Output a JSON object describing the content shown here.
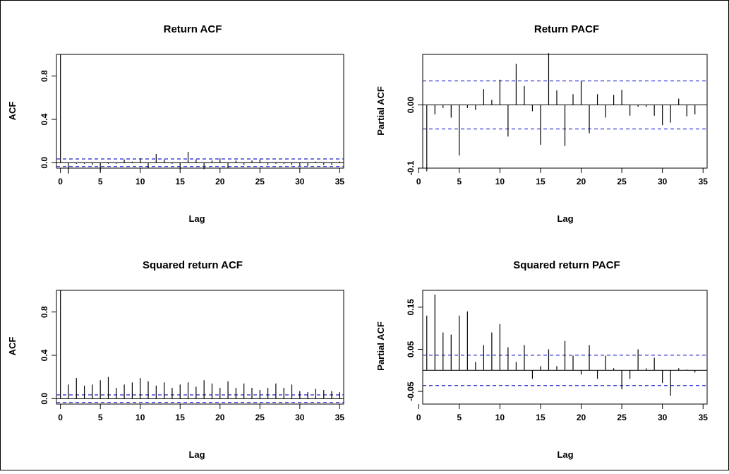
{
  "chart_data": [
    {
      "type": "bar",
      "title": "Return ACF",
      "xlabel": "Lag",
      "ylabel": "ACF",
      "xlim": [
        -0.5,
        35.5
      ],
      "ylim": [
        -0.05,
        1.0
      ],
      "xticks": [
        0,
        5,
        10,
        15,
        20,
        25,
        30,
        35
      ],
      "yticks": [
        0.0,
        0.4,
        0.8
      ],
      "zero_line": true,
      "confidence_band": 0.035,
      "series": [
        {
          "x": [
            0,
            1,
            2,
            3,
            4,
            5,
            6,
            7,
            8,
            9,
            10,
            11,
            12,
            13,
            14,
            15,
            16,
            17,
            18,
            19,
            20,
            21,
            22,
            23,
            24,
            25,
            26,
            27,
            28,
            29,
            30,
            31,
            32,
            33,
            34,
            35
          ],
          "values": [
            1.0,
            -0.1,
            -0.01,
            -0.01,
            -0.02,
            -0.08,
            -0.01,
            -0.01,
            0.03,
            0.01,
            0.04,
            -0.05,
            0.08,
            0.03,
            -0.01,
            -0.06,
            0.1,
            0.03,
            -0.06,
            0.02,
            0.04,
            -0.05,
            0.02,
            -0.02,
            0.02,
            0.03,
            -0.02,
            -0.01,
            -0.01,
            -0.02,
            -0.03,
            -0.03,
            0.01,
            -0.02,
            -0.02,
            0.01
          ]
        }
      ]
    },
    {
      "type": "bar",
      "title": "Return PACF",
      "xlabel": "Lag",
      "ylabel": "Partial ACF",
      "xlim": [
        0.5,
        35.5
      ],
      "ylim": [
        -0.1,
        0.08
      ],
      "xticks": [
        0,
        5,
        10,
        15,
        20,
        25,
        30,
        35
      ],
      "yticks": [
        -0.1,
        0.0
      ],
      "zero_line": true,
      "confidence_band": 0.038,
      "series": [
        {
          "x": [
            1,
            2,
            3,
            4,
            5,
            6,
            7,
            8,
            9,
            10,
            11,
            12,
            13,
            14,
            15,
            16,
            17,
            18,
            19,
            20,
            21,
            22,
            23,
            24,
            25,
            26,
            27,
            28,
            29,
            30,
            31,
            32,
            33,
            34
          ],
          "values": [
            -0.105,
            -0.015,
            -0.005,
            -0.02,
            -0.08,
            -0.005,
            -0.008,
            0.025,
            0.008,
            0.04,
            -0.05,
            0.065,
            0.03,
            -0.01,
            -0.063,
            0.082,
            0.023,
            -0.065,
            0.017,
            0.038,
            -0.045,
            0.017,
            -0.02,
            0.016,
            0.024,
            -0.017,
            -0.003,
            -0.003,
            -0.017,
            -0.032,
            -0.028,
            0.01,
            -0.018,
            -0.015
          ]
        }
      ]
    },
    {
      "type": "bar",
      "title": "Squared return ACF",
      "xlabel": "Lag",
      "ylabel": "ACF",
      "xlim": [
        -0.5,
        35.5
      ],
      "ylim": [
        -0.05,
        1.0
      ],
      "xticks": [
        0,
        5,
        10,
        15,
        20,
        25,
        30,
        35
      ],
      "yticks": [
        0.0,
        0.4,
        0.8
      ],
      "zero_line": true,
      "confidence_band": 0.035,
      "series": [
        {
          "x": [
            0,
            1,
            2,
            3,
            4,
            5,
            6,
            7,
            8,
            9,
            10,
            11,
            12,
            13,
            14,
            15,
            16,
            17,
            18,
            19,
            20,
            21,
            22,
            23,
            24,
            25,
            26,
            27,
            28,
            29,
            30,
            31,
            32,
            33,
            34,
            35
          ],
          "values": [
            1.0,
            0.13,
            0.19,
            0.12,
            0.13,
            0.17,
            0.2,
            0.1,
            0.13,
            0.15,
            0.19,
            0.16,
            0.12,
            0.15,
            0.1,
            0.13,
            0.15,
            0.11,
            0.17,
            0.14,
            0.1,
            0.16,
            0.1,
            0.14,
            0.1,
            0.08,
            0.1,
            0.14,
            0.1,
            0.13,
            0.07,
            0.06,
            0.09,
            0.08,
            0.07,
            0.06
          ]
        }
      ]
    },
    {
      "type": "bar",
      "title": "Squared return PACF",
      "xlabel": "Lag",
      "ylabel": "Partial ACF",
      "xlim": [
        0.5,
        35.5
      ],
      "ylim": [
        -0.08,
        0.19
      ],
      "xticks": [
        0,
        5,
        10,
        15,
        20,
        25,
        30,
        35
      ],
      "yticks": [
        -0.05,
        0.05,
        0.15
      ],
      "zero_line": true,
      "confidence_band": 0.036,
      "series": [
        {
          "x": [
            1,
            2,
            3,
            4,
            5,
            6,
            7,
            8,
            9,
            10,
            11,
            12,
            13,
            14,
            15,
            16,
            17,
            18,
            19,
            20,
            21,
            22,
            23,
            24,
            25,
            26,
            27,
            28,
            29,
            30,
            31,
            32,
            33,
            34
          ],
          "values": [
            0.13,
            0.18,
            0.09,
            0.085,
            0.13,
            0.14,
            0.02,
            0.06,
            0.09,
            0.11,
            0.055,
            0.02,
            0.06,
            -0.02,
            0.01,
            0.05,
            0.01,
            0.07,
            0.035,
            -0.01,
            0.06,
            -0.02,
            0.035,
            0.005,
            -0.045,
            -0.02,
            0.05,
            0.005,
            0.03,
            -0.03,
            -0.06,
            0.005,
            0.002,
            -0.005
          ]
        }
      ]
    }
  ]
}
